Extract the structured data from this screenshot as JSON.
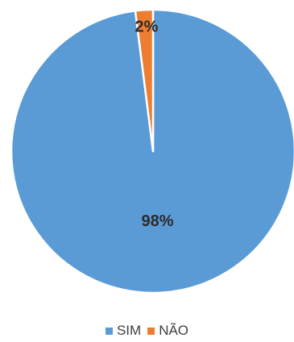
{
  "chart_data": {
    "type": "pie",
    "title": "",
    "categories": [
      "SIM",
      "NÃO"
    ],
    "values": [
      98,
      2
    ],
    "labels": [
      "98%",
      "2%"
    ],
    "colors": [
      "#5B9BD5",
      "#ED7D31"
    ],
    "legend": {
      "position": "bottom",
      "items": [
        {
          "label": "SIM",
          "color": "#5B9BD5"
        },
        {
          "label": "NÃO",
          "color": "#ED7D31"
        }
      ]
    }
  }
}
